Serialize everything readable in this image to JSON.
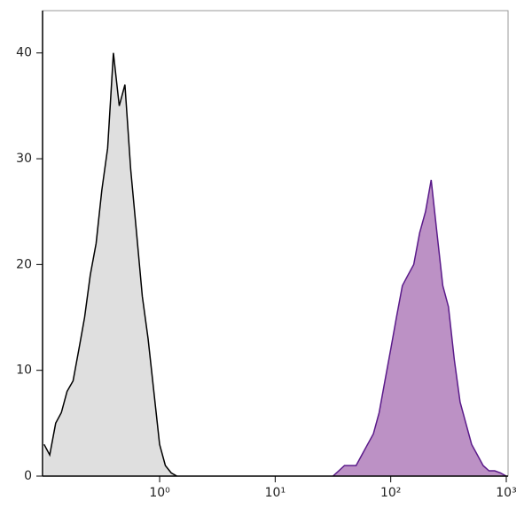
{
  "chart_data": {
    "type": "histogram-overlay",
    "xlog": true,
    "xlim": [
      0.097,
      1036
    ],
    "ylim": [
      0,
      44
    ],
    "xticks": [
      {
        "value": 1,
        "label": "10⁰"
      },
      {
        "value": 10,
        "label": "10¹"
      },
      {
        "value": 100,
        "label": "10²"
      },
      {
        "value": 1000,
        "label": "10³"
      }
    ],
    "yticks": [
      0,
      10,
      20,
      30,
      40
    ],
    "series": [
      {
        "color": "#000000",
        "fill": "#dcdcdc",
        "x": [
          0.1,
          0.112,
          0.126,
          0.141,
          0.158,
          0.178,
          0.2,
          0.224,
          0.251,
          0.282,
          0.316,
          0.355,
          0.398,
          0.447,
          0.501,
          0.562,
          0.631,
          0.708,
          0.794,
          0.891,
          1,
          1.12,
          1.26,
          1.41
        ],
        "values": [
          3,
          2,
          5,
          6,
          8,
          9,
          12,
          15,
          19,
          22,
          27,
          31,
          40,
          35,
          37,
          29,
          23,
          17,
          13,
          8,
          3,
          1,
          0.3,
          0
        ]
      },
      {
        "color": "#5a1a8a",
        "fill": "#b585bf",
        "x": [
          31.6,
          35.5,
          39.8,
          44.7,
          50.1,
          56.2,
          63.1,
          70.8,
          79.4,
          89.1,
          100,
          112,
          126,
          141,
          158,
          178,
          200,
          224,
          251,
          282,
          316,
          355,
          398,
          447,
          501,
          562,
          631,
          708,
          794,
          891,
          1000
        ],
        "values": [
          0,
          0.5,
          1,
          1,
          1,
          2,
          3,
          4,
          6,
          9,
          12,
          15,
          18,
          19,
          20,
          23,
          25,
          28,
          23,
          18,
          16,
          11,
          7,
          5,
          3,
          2,
          1,
          0.5,
          0.5,
          0.3,
          0
        ]
      }
    ]
  }
}
